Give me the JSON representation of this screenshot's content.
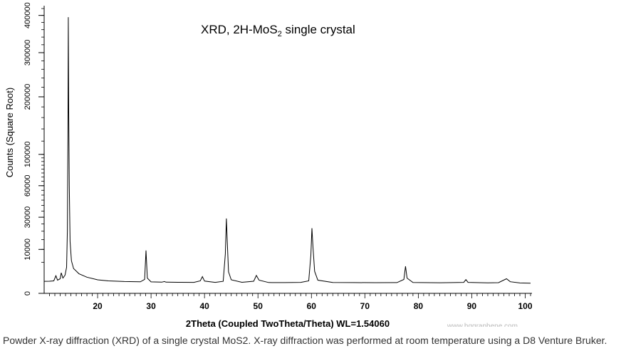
{
  "chart_data": {
    "type": "line",
    "title": "XRD, 2H-MoS",
    "title_subscript": "2",
    "title_suffix": " single crystal",
    "xlabel": "2Theta (Coupled TwoTheta/Theta) WL=1.54060",
    "ylabel": "Counts (Square Root)",
    "y_scale": "sqrt",
    "xlim": [
      10,
      101
    ],
    "ylim": [
      0,
      420000
    ],
    "x_ticks": [
      20,
      30,
      40,
      50,
      60,
      70,
      80,
      90,
      100
    ],
    "y_ticks": [
      0,
      10000,
      30000,
      60000,
      100000,
      200000,
      300000,
      400000
    ],
    "x_tick_labels": [
      "20",
      "30",
      "40",
      "50",
      "60",
      "70",
      "80",
      "90",
      "100"
    ],
    "y_tick_labels": [
      "0",
      "10000",
      "30000",
      "60000",
      "100000",
      "200000",
      "300000",
      "400000"
    ],
    "grid": false,
    "series": [
      {
        "points": [
          [
            10.0,
            750
          ],
          [
            11.0,
            760
          ],
          [
            11.8,
            800
          ],
          [
            12.2,
            1600
          ],
          [
            12.5,
            900
          ],
          [
            13.0,
            1100
          ],
          [
            13.2,
            2200
          ],
          [
            13.5,
            1200
          ],
          [
            13.9,
            1700
          ],
          [
            14.2,
            3500
          ],
          [
            14.35,
            20000
          ],
          [
            14.45,
            130000
          ],
          [
            14.52,
            395000
          ],
          [
            14.6,
            170000
          ],
          [
            14.7,
            60000
          ],
          [
            14.85,
            14000
          ],
          [
            15.1,
            5500
          ],
          [
            15.5,
            3200
          ],
          [
            16.5,
            2000
          ],
          [
            18.0,
            1350
          ],
          [
            20.0,
            950
          ],
          [
            22.0,
            800
          ],
          [
            25.0,
            720
          ],
          [
            28.0,
            690
          ],
          [
            28.8,
            1000
          ],
          [
            29.05,
            9500
          ],
          [
            29.3,
            1200
          ],
          [
            30.0,
            680
          ],
          [
            32.0,
            650
          ],
          [
            32.5,
            720
          ],
          [
            32.8,
            650
          ],
          [
            35.0,
            630
          ],
          [
            38.0,
            620
          ],
          [
            39.2,
            800
          ],
          [
            39.6,
            1450
          ],
          [
            40.0,
            780
          ],
          [
            42.0,
            620
          ],
          [
            43.5,
            750
          ],
          [
            43.9,
            8000
          ],
          [
            44.1,
            29000
          ],
          [
            44.25,
            14000
          ],
          [
            44.5,
            2400
          ],
          [
            45.0,
            950
          ],
          [
            47.0,
            630
          ],
          [
            49.2,
            760
          ],
          [
            49.7,
            1650
          ],
          [
            50.2,
            900
          ],
          [
            52.0,
            610
          ],
          [
            55.0,
            600
          ],
          [
            58.0,
            620
          ],
          [
            59.5,
            800
          ],
          [
            59.9,
            7500
          ],
          [
            60.1,
            22000
          ],
          [
            60.3,
            11000
          ],
          [
            60.6,
            2500
          ],
          [
            61.2,
            900
          ],
          [
            64.0,
            610
          ],
          [
            68.0,
            600
          ],
          [
            72.0,
            590
          ],
          [
            76.0,
            600
          ],
          [
            77.3,
            1000
          ],
          [
            77.6,
            3800
          ],
          [
            77.9,
            1200
          ],
          [
            79.0,
            610
          ],
          [
            84.0,
            580
          ],
          [
            88.5,
            620
          ],
          [
            88.9,
            980
          ],
          [
            89.3,
            620
          ],
          [
            93.0,
            570
          ],
          [
            95.0,
            590
          ],
          [
            96.5,
            1100
          ],
          [
            97.2,
            700
          ],
          [
            99.0,
            560
          ],
          [
            101.0,
            540
          ]
        ]
      }
    ]
  },
  "caption": "Powder X-ray diffraction (XRD) of a single crystal MoS2. X-ray diffraction was performed at room temperature using a D8 Venture Bruker.",
  "watermark": "www.hqgraphene.com",
  "colors": {
    "line": "#000000",
    "axis": "#000000",
    "caption": "#333333",
    "watermark": "#b8b8b8"
  }
}
